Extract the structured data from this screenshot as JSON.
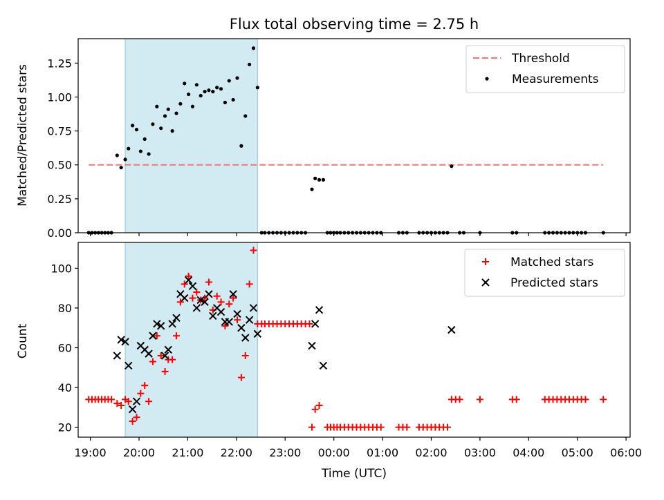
{
  "chart_data": [
    {
      "type": "scatter",
      "title": "Flux total observing time = 2.75 h",
      "ylabel": "Matched/Predicted stars",
      "xlim": [
        "18:45",
        "06:05"
      ],
      "ylim": [
        0,
        1.43
      ],
      "yticks": [
        "0.00",
        "0.25",
        "0.50",
        "0.75",
        "1.00",
        "1.25"
      ],
      "grid": false,
      "legend_position": "upper-right",
      "shaded_span": {
        "start": "19:43",
        "end": "22:26",
        "color": "#add8e6"
      },
      "threshold": {
        "name": "Threshold",
        "value": 0.5,
        "x_start": "18:58",
        "x_end": "05:32",
        "color": "#ff7070"
      },
      "series": [
        {
          "name": "Measurements",
          "color": "#000000",
          "points": [
            [
              "18:58",
              0
            ],
            [
              "19:02",
              0
            ],
            [
              "19:06",
              0
            ],
            [
              "19:10",
              0
            ],
            [
              "19:14",
              0
            ],
            [
              "19:18",
              0
            ],
            [
              "19:22",
              0
            ],
            [
              "19:26",
              0
            ],
            [
              "19:33",
              0.57
            ],
            [
              "19:38",
              0.48
            ],
            [
              "19:43",
              0.54
            ],
            [
              "19:47",
              0.62
            ],
            [
              "19:52",
              0.79
            ],
            [
              "19:57",
              0.76
            ],
            [
              "20:02",
              0.6
            ],
            [
              "20:07",
              0.69
            ],
            [
              "20:12",
              0.58
            ],
            [
              "20:17",
              0.8
            ],
            [
              "20:22",
              0.93
            ],
            [
              "20:27",
              0.77
            ],
            [
              "20:32",
              0.86
            ],
            [
              "20:36",
              0.91
            ],
            [
              "20:41",
              0.75
            ],
            [
              "20:46",
              0.88
            ],
            [
              "20:51",
              0.95
            ],
            [
              "20:56",
              1.1
            ],
            [
              "21:01",
              1.02
            ],
            [
              "21:06",
              0.93
            ],
            [
              "21:11",
              1.09
            ],
            [
              "21:16",
              1.01
            ],
            [
              "21:21",
              1.04
            ],
            [
              "21:26",
              1.05
            ],
            [
              "21:31",
              1.04
            ],
            [
              "21:36",
              1.07
            ],
            [
              "21:41",
              1.06
            ],
            [
              "21:46",
              0.96
            ],
            [
              "21:51",
              1.12
            ],
            [
              "21:56",
              0.98
            ],
            [
              "22:01",
              1.14
            ],
            [
              "22:06",
              0.64
            ],
            [
              "22:11",
              0.86
            ],
            [
              "22:16",
              1.24
            ],
            [
              "22:21",
              1.36
            ],
            [
              "22:26",
              1.07
            ],
            [
              "22:31",
              0
            ],
            [
              "22:35",
              0
            ],
            [
              "22:40",
              0
            ],
            [
              "22:45",
              0
            ],
            [
              "22:50",
              0
            ],
            [
              "22:55",
              0
            ],
            [
              "23:00",
              0
            ],
            [
              "23:05",
              0
            ],
            [
              "23:10",
              0
            ],
            [
              "23:15",
              0
            ],
            [
              "23:20",
              0
            ],
            [
              "23:25",
              0
            ],
            [
              "23:33",
              0.32
            ],
            [
              "23:37",
              0.4
            ],
            [
              "23:42",
              0.39
            ],
            [
              "23:47",
              0.39
            ],
            [
              "23:52",
              0
            ],
            [
              "23:56",
              0
            ],
            [
              "00:00",
              0
            ],
            [
              "00:04",
              0
            ],
            [
              "00:08",
              0
            ],
            [
              "00:13",
              0
            ],
            [
              "00:18",
              0
            ],
            [
              "00:23",
              0
            ],
            [
              "00:28",
              0
            ],
            [
              "00:33",
              0
            ],
            [
              "00:38",
              0
            ],
            [
              "00:43",
              0
            ],
            [
              "00:48",
              0
            ],
            [
              "00:53",
              0
            ],
            [
              "00:58",
              0
            ],
            [
              "01:20",
              0
            ],
            [
              "01:25",
              0
            ],
            [
              "01:30",
              0
            ],
            [
              "01:45",
              0
            ],
            [
              "01:50",
              0
            ],
            [
              "01:55",
              0
            ],
            [
              "02:00",
              0
            ],
            [
              "02:05",
              0
            ],
            [
              "02:10",
              0
            ],
            [
              "02:15",
              0
            ],
            [
              "02:20",
              0
            ],
            [
              "02:25",
              0.49
            ],
            [
              "02:35",
              0
            ],
            [
              "02:40",
              0
            ],
            [
              "03:00",
              0
            ],
            [
              "03:40",
              0
            ],
            [
              "03:45",
              0
            ],
            [
              "04:20",
              0
            ],
            [
              "04:25",
              0
            ],
            [
              "04:30",
              0
            ],
            [
              "04:35",
              0
            ],
            [
              "04:40",
              0
            ],
            [
              "04:45",
              0
            ],
            [
              "04:50",
              0
            ],
            [
              "04:55",
              0
            ],
            [
              "05:00",
              0
            ],
            [
              "05:05",
              0
            ],
            [
              "05:10",
              0
            ],
            [
              "05:32",
              0
            ]
          ]
        }
      ]
    },
    {
      "type": "scatter",
      "xlabel": "Time (UTC)",
      "ylabel": "Count",
      "xticks": [
        "19:00",
        "20:00",
        "21:00",
        "22:00",
        "23:00",
        "00:00",
        "01:00",
        "02:00",
        "03:00",
        "04:00",
        "05:00",
        "06:00"
      ],
      "xlim": [
        "18:45",
        "06:05"
      ],
      "ylim": [
        15,
        113
      ],
      "yticks": [
        20,
        40,
        60,
        80,
        100
      ],
      "grid": false,
      "legend_position": "upper-right",
      "shaded_span": {
        "start": "19:43",
        "end": "22:26",
        "color": "#add8e6"
      },
      "series": [
        {
          "name": "Matched stars",
          "marker": "plus",
          "color": "#ff0000",
          "points": [
            [
              "18:58",
              34
            ],
            [
              "19:02",
              34
            ],
            [
              "19:06",
              34
            ],
            [
              "19:10",
              34
            ],
            [
              "19:14",
              34
            ],
            [
              "19:18",
              34
            ],
            [
              "19:22",
              34
            ],
            [
              "19:26",
              34
            ],
            [
              "19:33",
              32
            ],
            [
              "19:38",
              31
            ],
            [
              "19:43",
              34
            ],
            [
              "19:47",
              33
            ],
            [
              "19:52",
              23
            ],
            [
              "19:57",
              25
            ],
            [
              "20:02",
              37
            ],
            [
              "20:07",
              41
            ],
            [
              "20:12",
              33
            ],
            [
              "20:17",
              53
            ],
            [
              "20:22",
              66
            ],
            [
              "20:27",
              56
            ],
            [
              "20:32",
              48
            ],
            [
              "20:36",
              54
            ],
            [
              "20:41",
              54
            ],
            [
              "20:46",
              66
            ],
            [
              "20:51",
              83
            ],
            [
              "20:56",
              92
            ],
            [
              "21:01",
              96
            ],
            [
              "21:06",
              85
            ],
            [
              "21:11",
              88
            ],
            [
              "21:16",
              84
            ],
            [
              "21:21",
              85
            ],
            [
              "21:26",
              93
            ],
            [
              "21:31",
              79
            ],
            [
              "21:36",
              86
            ],
            [
              "21:41",
              83
            ],
            [
              "21:46",
              71
            ],
            [
              "21:51",
              82
            ],
            [
              "21:56",
              85
            ],
            [
              "22:01",
              74
            ],
            [
              "22:06",
              45
            ],
            [
              "22:11",
              56
            ],
            [
              "22:16",
              92
            ],
            [
              "22:21",
              109
            ],
            [
              "22:26",
              72
            ],
            [
              "22:31",
              72
            ],
            [
              "22:35",
              72
            ],
            [
              "22:40",
              72
            ],
            [
              "22:45",
              72
            ],
            [
              "22:50",
              72
            ],
            [
              "22:55",
              72
            ],
            [
              "23:00",
              72
            ],
            [
              "23:05",
              72
            ],
            [
              "23:10",
              72
            ],
            [
              "23:15",
              72
            ],
            [
              "23:20",
              72
            ],
            [
              "23:25",
              72
            ],
            [
              "23:30",
              72
            ],
            [
              "23:33",
              20
            ],
            [
              "23:37",
              29
            ],
            [
              "23:42",
              31
            ],
            [
              "23:52",
              20
            ],
            [
              "23:56",
              20
            ],
            [
              "00:00",
              20
            ],
            [
              "00:04",
              20
            ],
            [
              "00:08",
              20
            ],
            [
              "00:13",
              20
            ],
            [
              "00:18",
              20
            ],
            [
              "00:23",
              20
            ],
            [
              "00:28",
              20
            ],
            [
              "00:33",
              20
            ],
            [
              "00:38",
              20
            ],
            [
              "00:43",
              20
            ],
            [
              "00:48",
              20
            ],
            [
              "00:53",
              20
            ],
            [
              "00:58",
              20
            ],
            [
              "01:20",
              20
            ],
            [
              "01:25",
              20
            ],
            [
              "01:30",
              20
            ],
            [
              "01:45",
              20
            ],
            [
              "01:50",
              20
            ],
            [
              "01:55",
              20
            ],
            [
              "02:00",
              20
            ],
            [
              "02:05",
              20
            ],
            [
              "02:10",
              20
            ],
            [
              "02:15",
              20
            ],
            [
              "02:20",
              20
            ],
            [
              "02:25",
              34
            ],
            [
              "02:30",
              34
            ],
            [
              "02:35",
              34
            ],
            [
              "03:00",
              34
            ],
            [
              "03:40",
              34
            ],
            [
              "03:45",
              34
            ],
            [
              "04:20",
              34
            ],
            [
              "04:25",
              34
            ],
            [
              "04:30",
              34
            ],
            [
              "04:35",
              34
            ],
            [
              "04:40",
              34
            ],
            [
              "04:45",
              34
            ],
            [
              "04:50",
              34
            ],
            [
              "04:55",
              34
            ],
            [
              "05:00",
              34
            ],
            [
              "05:05",
              34
            ],
            [
              "05:10",
              34
            ],
            [
              "05:32",
              34
            ]
          ]
        },
        {
          "name": "Predicted stars",
          "marker": "x",
          "color": "#000000",
          "points": [
            [
              "19:33",
              56
            ],
            [
              "19:38",
              64
            ],
            [
              "19:43",
              63
            ],
            [
              "19:47",
              51
            ],
            [
              "19:52",
              29
            ],
            [
              "19:57",
              33
            ],
            [
              "20:02",
              61
            ],
            [
              "20:07",
              59
            ],
            [
              "20:12",
              57
            ],
            [
              "20:17",
              66
            ],
            [
              "20:22",
              72
            ],
            [
              "20:27",
              71
            ],
            [
              "20:32",
              56
            ],
            [
              "20:36",
              59
            ],
            [
              "20:41",
              72
            ],
            [
              "20:46",
              75
            ],
            [
              "20:51",
              87
            ],
            [
              "20:56",
              85
            ],
            [
              "21:01",
              94
            ],
            [
              "21:06",
              91
            ],
            [
              "21:11",
              80
            ],
            [
              "21:16",
              84
            ],
            [
              "21:21",
              83
            ],
            [
              "21:26",
              87
            ],
            [
              "21:31",
              76
            ],
            [
              "21:36",
              80
            ],
            [
              "21:41",
              78
            ],
            [
              "21:46",
              73
            ],
            [
              "21:51",
              73
            ],
            [
              "21:56",
              87
            ],
            [
              "22:01",
              77
            ],
            [
              "22:06",
              70
            ],
            [
              "22:11",
              65
            ],
            [
              "22:16",
              74
            ],
            [
              "22:21",
              80
            ],
            [
              "22:26",
              67
            ],
            [
              "23:33",
              61
            ],
            [
              "23:37",
              72
            ],
            [
              "23:42",
              79
            ],
            [
              "23:47",
              51
            ],
            [
              "02:25",
              69
            ]
          ]
        }
      ]
    }
  ]
}
